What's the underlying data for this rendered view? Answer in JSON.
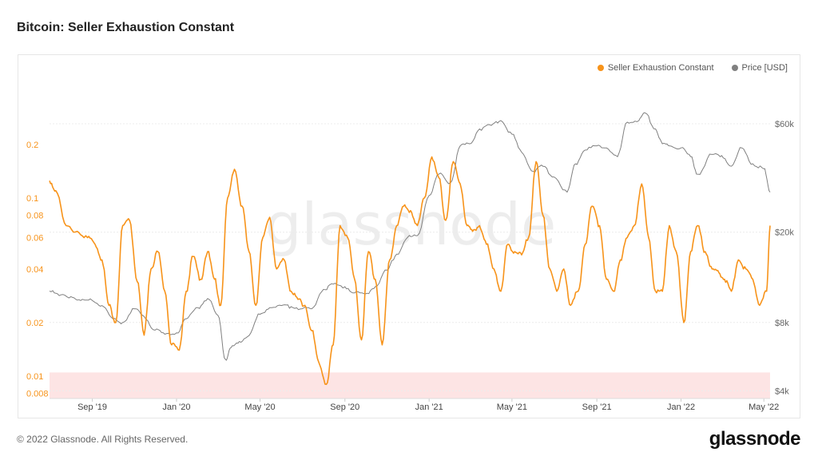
{
  "header": {
    "title": "Bitcoin: Seller Exhaustion Constant"
  },
  "legend": {
    "items": [
      {
        "label": "Seller Exhaustion Constant",
        "color": "#f7931a"
      },
      {
        "label": "Price [USD]",
        "color": "#808080"
      }
    ]
  },
  "watermark": "glassnode",
  "footer": {
    "copyright": "© 2022 Glassnode. All Rights Reserved.",
    "logo": "glassnode"
  },
  "chart_data": {
    "type": "line",
    "title": "Bitcoin: Seller Exhaustion Constant",
    "x_ticks": [
      "Sep '19",
      "Jan '20",
      "May '20",
      "Sep '20",
      "Jan '21",
      "May '21",
      "Sep '21",
      "Jan '22",
      "May '22"
    ],
    "x_tick_dates": [
      "2019-09-01",
      "2020-01-01",
      "2020-05-01",
      "2020-09-01",
      "2021-01-01",
      "2021-05-01",
      "2021-09-01",
      "2022-01-01",
      "2022-05-01"
    ],
    "left_axis": {
      "scale": "log",
      "ticks": [
        0.008,
        0.01,
        0.02,
        0.04,
        0.06,
        0.08,
        0.1,
        0.2
      ],
      "tick_labels": [
        "0.008",
        "0.01",
        "0.02",
        "0.04",
        "0.06",
        "0.08",
        "0.1",
        "0.2"
      ],
      "range": [
        0.0075,
        0.5
      ],
      "shaded_band": [
        0.0075,
        0.0105
      ],
      "shaded_color": "#fde4e4"
    },
    "right_axis": {
      "scale": "log",
      "ticks": [
        4000,
        8000,
        20000,
        60000
      ],
      "tick_labels": [
        "$4k",
        "$8k",
        "$20k",
        "$60k"
      ],
      "range": [
        3700,
        100000
      ]
    },
    "series": [
      {
        "name": "Seller Exhaustion Constant",
        "axis": "left",
        "color": "#f7931a",
        "x": [
          "2019-07-01",
          "2019-07-10",
          "2019-07-25",
          "2019-08-10",
          "2019-08-25",
          "2019-09-05",
          "2019-09-15",
          "2019-09-25",
          "2019-10-05",
          "2019-10-15",
          "2019-10-25",
          "2019-11-05",
          "2019-11-15",
          "2019-11-25",
          "2019-12-05",
          "2019-12-15",
          "2019-12-25",
          "2020-01-05",
          "2020-01-15",
          "2020-01-25",
          "2020-02-05",
          "2020-02-15",
          "2020-02-25",
          "2020-03-05",
          "2020-03-15",
          "2020-03-25",
          "2020-04-05",
          "2020-04-15",
          "2020-04-25",
          "2020-05-05",
          "2020-05-15",
          "2020-05-25",
          "2020-06-05",
          "2020-06-15",
          "2020-06-25",
          "2020-07-05",
          "2020-07-15",
          "2020-07-25",
          "2020-08-05",
          "2020-08-15",
          "2020-08-25",
          "2020-09-05",
          "2020-09-15",
          "2020-09-25",
          "2020-10-05",
          "2020-10-15",
          "2020-10-25",
          "2020-11-05",
          "2020-11-15",
          "2020-11-25",
          "2020-12-05",
          "2020-12-15",
          "2020-12-25",
          "2021-01-05",
          "2021-01-15",
          "2021-01-25",
          "2021-02-05",
          "2021-02-15",
          "2021-02-25",
          "2021-03-05",
          "2021-03-15",
          "2021-03-25",
          "2021-04-05",
          "2021-04-15",
          "2021-04-25",
          "2021-05-05",
          "2021-05-15",
          "2021-05-25",
          "2021-06-05",
          "2021-06-15",
          "2021-06-25",
          "2021-07-05",
          "2021-07-15",
          "2021-07-25",
          "2021-08-05",
          "2021-08-15",
          "2021-08-25",
          "2021-09-05",
          "2021-09-15",
          "2021-09-25",
          "2021-10-05",
          "2021-10-15",
          "2021-10-25",
          "2021-11-05",
          "2021-11-15",
          "2021-11-25",
          "2021-12-05",
          "2021-12-15",
          "2021-12-25",
          "2022-01-05",
          "2022-01-15",
          "2022-01-25",
          "2022-02-05",
          "2022-02-15",
          "2022-02-25",
          "2022-03-05",
          "2022-03-15",
          "2022-03-25",
          "2022-04-05",
          "2022-04-15",
          "2022-04-25",
          "2022-05-05",
          "2022-05-10"
        ],
        "values": [
          0.125,
          0.11,
          0.07,
          0.065,
          0.06,
          0.055,
          0.045,
          0.025,
          0.02,
          0.07,
          0.075,
          0.034,
          0.017,
          0.04,
          0.05,
          0.03,
          0.015,
          0.014,
          0.03,
          0.047,
          0.035,
          0.05,
          0.035,
          0.025,
          0.1,
          0.145,
          0.09,
          0.05,
          0.025,
          0.06,
          0.078,
          0.04,
          0.045,
          0.03,
          0.027,
          0.025,
          0.018,
          0.012,
          0.009,
          0.015,
          0.07,
          0.06,
          0.035,
          0.016,
          0.05,
          0.035,
          0.015,
          0.045,
          0.07,
          0.09,
          0.085,
          0.07,
          0.1,
          0.17,
          0.13,
          0.075,
          0.16,
          0.12,
          0.07,
          0.065,
          0.07,
          0.055,
          0.04,
          0.03,
          0.055,
          0.05,
          0.048,
          0.06,
          0.16,
          0.08,
          0.04,
          0.03,
          0.04,
          0.025,
          0.03,
          0.055,
          0.09,
          0.07,
          0.035,
          0.03,
          0.045,
          0.06,
          0.07,
          0.12,
          0.06,
          0.03,
          0.03,
          0.07,
          0.05,
          0.02,
          0.05,
          0.07,
          0.05,
          0.04,
          0.038,
          0.035,
          0.03,
          0.045,
          0.04,
          0.035,
          0.025,
          0.03,
          0.07
        ]
      },
      {
        "name": "Price [USD]",
        "axis": "right",
        "color": "#808080",
        "x": [
          "2019-07-01",
          "2019-07-15",
          "2019-08-01",
          "2019-08-15",
          "2019-09-01",
          "2019-09-15",
          "2019-10-01",
          "2019-10-15",
          "2019-11-01",
          "2019-11-15",
          "2019-12-01",
          "2019-12-15",
          "2020-01-01",
          "2020-01-15",
          "2020-02-01",
          "2020-02-15",
          "2020-03-01",
          "2020-03-12",
          "2020-03-20",
          "2020-04-01",
          "2020-04-15",
          "2020-05-01",
          "2020-05-15",
          "2020-06-01",
          "2020-06-15",
          "2020-07-01",
          "2020-07-15",
          "2020-08-01",
          "2020-08-15",
          "2020-09-01",
          "2020-09-15",
          "2020-10-01",
          "2020-10-15",
          "2020-11-01",
          "2020-11-15",
          "2020-12-01",
          "2020-12-15",
          "2021-01-01",
          "2021-01-15",
          "2021-02-01",
          "2021-02-15",
          "2021-03-01",
          "2021-03-15",
          "2021-04-01",
          "2021-04-15",
          "2021-05-01",
          "2021-05-15",
          "2021-06-01",
          "2021-06-15",
          "2021-07-01",
          "2021-07-20",
          "2021-08-01",
          "2021-08-15",
          "2021-09-01",
          "2021-09-15",
          "2021-10-01",
          "2021-10-15",
          "2021-11-01",
          "2021-11-10",
          "2021-11-25",
          "2021-12-05",
          "2021-12-15",
          "2022-01-01",
          "2022-01-15",
          "2022-01-25",
          "2022-02-15",
          "2022-03-01",
          "2022-03-15",
          "2022-03-30",
          "2022-04-15",
          "2022-05-01",
          "2022-05-10"
        ],
        "values": [
          11000,
          10500,
          10400,
          10000,
          10000,
          9500,
          8300,
          8000,
          9200,
          8500,
          7400,
          7100,
          7200,
          8300,
          9300,
          10200,
          8600,
          5500,
          6200,
          6600,
          7000,
          8700,
          9300,
          9500,
          9400,
          9200,
          9200,
          11200,
          11800,
          11500,
          10800,
          10700,
          11500,
          13600,
          16000,
          19000,
          19300,
          29000,
          36000,
          33000,
          48000,
          49000,
          57000,
          59000,
          62000,
          54000,
          45000,
          37000,
          39000,
          35000,
          30000,
          40000,
          46000,
          48000,
          47000,
          43000,
          61000,
          62000,
          67000,
          57000,
          49000,
          48000,
          47000,
          43000,
          36000,
          44000,
          43500,
          39000,
          47000,
          40000,
          38000,
          30000
        ]
      }
    ],
    "x_range": [
      "2019-07-01",
      "2022-05-10"
    ]
  }
}
